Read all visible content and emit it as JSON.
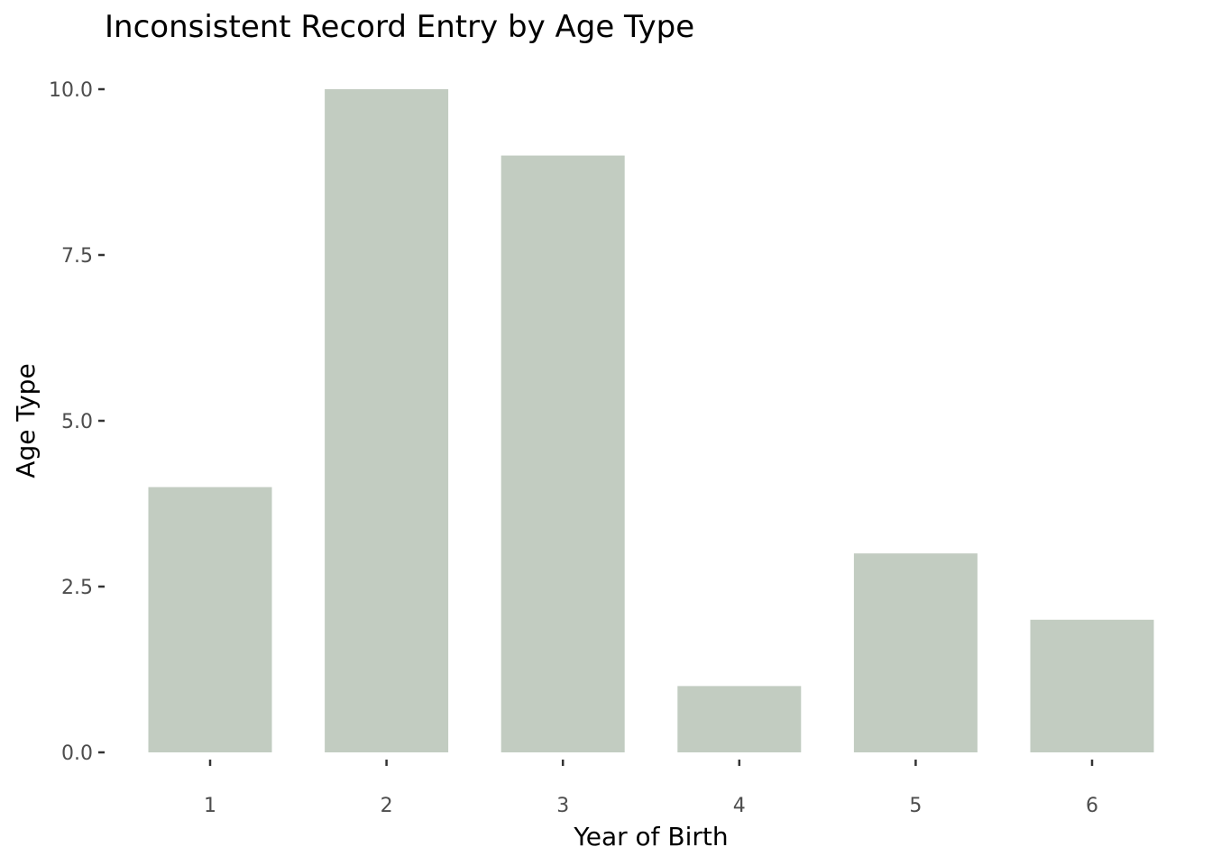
{
  "chart_data": {
    "type": "bar",
    "title": "Inconsistent Record Entry by Age Type",
    "xlabel": "Year of Birth",
    "ylabel": "Age Type",
    "categories": [
      "1",
      "2",
      "3",
      "4",
      "5",
      "6"
    ],
    "values": [
      4,
      10,
      9,
      1,
      3,
      2
    ],
    "ylim": [
      0,
      10
    ],
    "yticks": [
      0,
      2.5,
      5,
      7.5,
      10
    ],
    "ytick_labels": [
      "0.0",
      "2.5",
      "5.0",
      "7.5",
      "10.0"
    ],
    "grid": false,
    "bar_color": "#c2ccc1"
  }
}
